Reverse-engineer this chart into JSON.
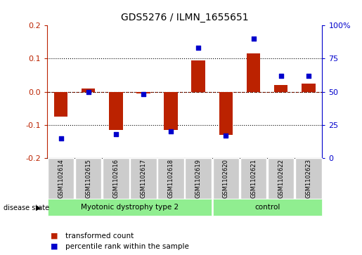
{
  "title": "GDS5276 / ILMN_1655651",
  "samples": [
    "GSM1102614",
    "GSM1102615",
    "GSM1102616",
    "GSM1102617",
    "GSM1102618",
    "GSM1102619",
    "GSM1102620",
    "GSM1102621",
    "GSM1102622",
    "GSM1102623"
  ],
  "transformed_count": [
    -0.075,
    0.01,
    -0.115,
    -0.005,
    -0.115,
    0.095,
    -0.13,
    0.115,
    0.02,
    0.025
  ],
  "percentile_rank": [
    15,
    50,
    18,
    48,
    20,
    83,
    17,
    90,
    62,
    62
  ],
  "groups": [
    {
      "label": "Myotonic dystrophy type 2",
      "start": 0,
      "end": 5
    },
    {
      "label": "control",
      "start": 6,
      "end": 9
    }
  ],
  "bar_color": "#bb2200",
  "dot_color": "#0000cc",
  "ylim_left": [
    -0.2,
    0.2
  ],
  "ylim_right": [
    0,
    100
  ],
  "yticks_left": [
    -0.2,
    -0.1,
    0.0,
    0.1,
    0.2
  ],
  "yticks_right": [
    0,
    25,
    50,
    75,
    100
  ],
  "ytick_right_labels": [
    "0",
    "25",
    "50",
    "75",
    "100%"
  ],
  "left_axis_color": "#bb2200",
  "right_axis_color": "#0000cc",
  "disease_state_label": "disease state",
  "legend_items": [
    {
      "label": "transformed count",
      "color": "#bb2200"
    },
    {
      "label": "percentile rank within the sample",
      "color": "#0000cc"
    }
  ],
  "tick_box_color": "#cccccc",
  "green_color": "#90ee90"
}
